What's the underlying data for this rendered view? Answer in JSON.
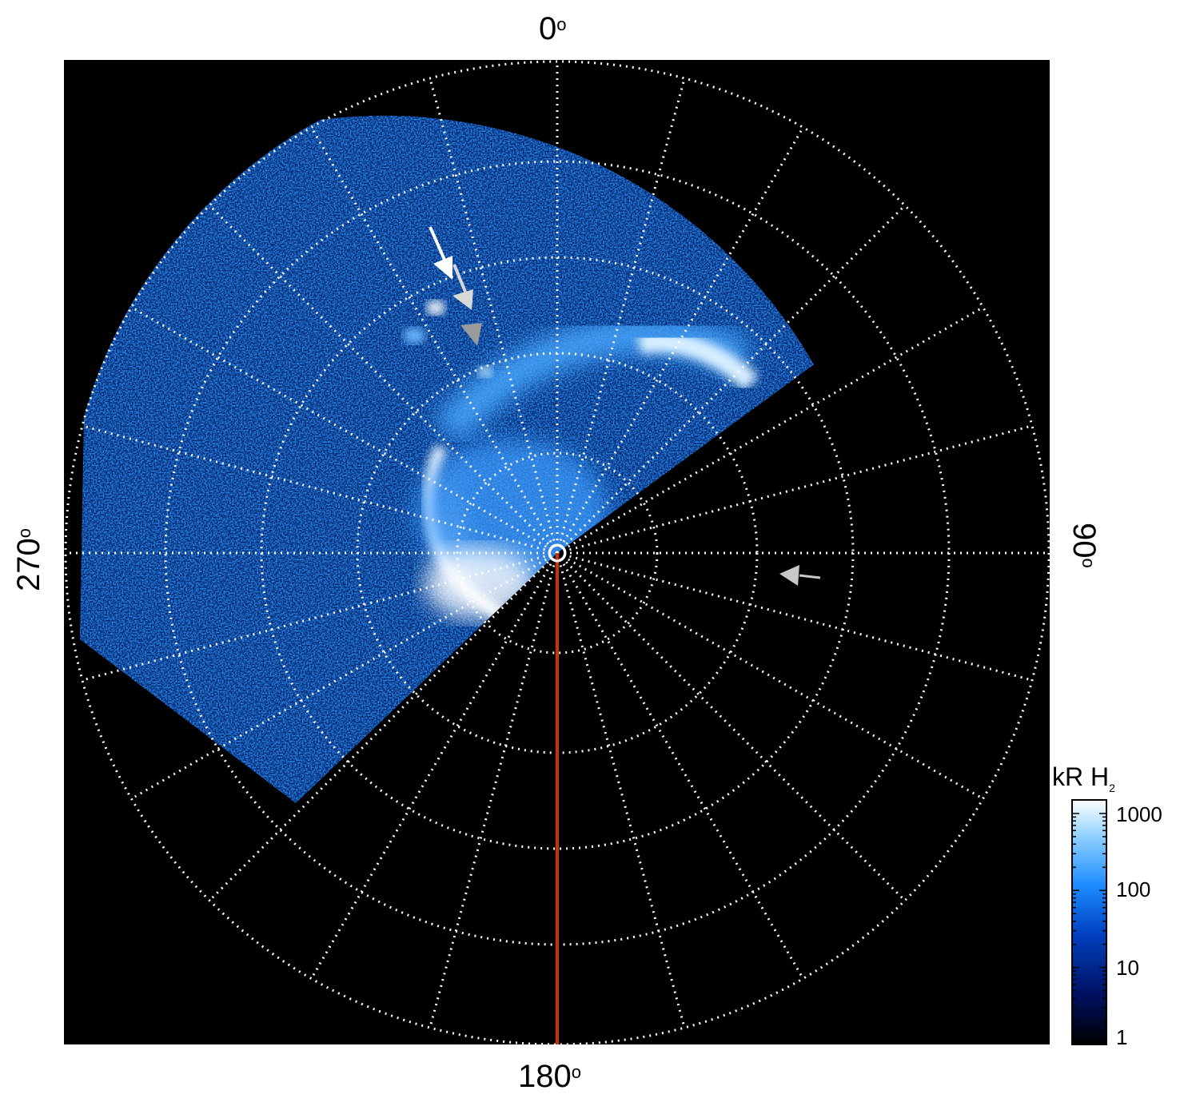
{
  "labels": {
    "top": "0",
    "right": "90",
    "bottom": "180",
    "left": "270",
    "degree_symbol": "o"
  },
  "colorbar": {
    "title_main": "kR H",
    "title_sub": "2",
    "ticks": [
      "1000",
      "100",
      "10",
      "1"
    ],
    "scale": "log",
    "range": [
      1,
      1500
    ],
    "colors": [
      "#000000",
      "#001060",
      "#0040c0",
      "#1c8cff",
      "#8fd0ff",
      "#ffffff"
    ]
  },
  "colors": {
    "background": "#000000",
    "grid": "#ffffff",
    "meridian_line": "#cc3300",
    "emission_low": "#0a3a9a",
    "emission_high": "#ffffff"
  },
  "arrows": [
    {
      "name": "white-arrow",
      "color": "#ffffff"
    },
    {
      "name": "light-gray-arrow",
      "color": "#d8d8d8"
    },
    {
      "name": "gray-arrowhead",
      "color": "#9a9a9a"
    },
    {
      "name": "right-gray-arrow",
      "color": "#c8c8c8"
    }
  ]
}
